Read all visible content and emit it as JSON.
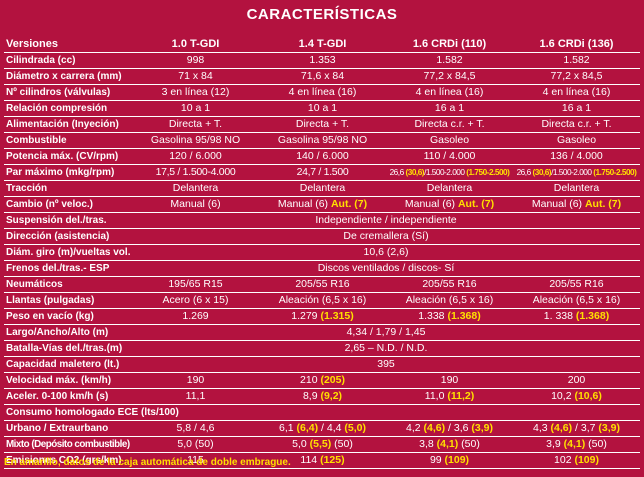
{
  "title": "CARACTERÍSTICAS",
  "columns": [
    "Versiones",
    "1.0 T-GDI",
    "1.4 T-GDI",
    "1.6 CRDi (110)",
    "1.6 CRDi (136)"
  ],
  "rows": [
    {
      "label": "Cilindrada (cc)",
      "cells": [
        [
          {
            "t": "998"
          }
        ],
        [
          {
            "t": "1.353"
          }
        ],
        [
          {
            "t": "1.582"
          }
        ],
        [
          {
            "t": "1.582"
          }
        ]
      ]
    },
    {
      "label": "Diámetro x carrera (mm)",
      "cells": [
        [
          {
            "t": "71 x 84"
          }
        ],
        [
          {
            "t": "71,6 x 84"
          }
        ],
        [
          {
            "t": "77,2 x 84,5"
          }
        ],
        [
          {
            "t": "77,2 x 84,5"
          }
        ]
      ]
    },
    {
      "label": "Nº cilindros (válvulas)",
      "cells": [
        [
          {
            "t": "3 en línea (12)"
          }
        ],
        [
          {
            "t": "4 en línea (16)"
          }
        ],
        [
          {
            "t": "4 en línea (16)"
          }
        ],
        [
          {
            "t": "4 en línea (16)"
          }
        ]
      ]
    },
    {
      "label": "Relación compresión",
      "cells": [
        [
          {
            "t": "10 a 1"
          }
        ],
        [
          {
            "t": "10 a 1"
          }
        ],
        [
          {
            "t": "16 a 1"
          }
        ],
        [
          {
            "t": "16 a 1"
          }
        ]
      ]
    },
    {
      "label": "Alimentación (Inyeción)",
      "cells": [
        [
          {
            "t": "Directa + T."
          }
        ],
        [
          {
            "t": "Directa + T."
          }
        ],
        [
          {
            "t": "Directa c.r. + T."
          }
        ],
        [
          {
            "t": "Directa c.r. + T."
          }
        ]
      ]
    },
    {
      "label": "Combustible",
      "cells": [
        [
          {
            "t": "Gasolina 95/98 NO"
          }
        ],
        [
          {
            "t": "Gasolina 95/98 NO"
          }
        ],
        [
          {
            "t": "Gasoleo"
          }
        ],
        [
          {
            "t": "Gasoleo"
          }
        ]
      ]
    },
    {
      "label": "Potencia máx. (CV/rpm)",
      "cells": [
        [
          {
            "t": "120 / 6.000"
          }
        ],
        [
          {
            "t": "140 / 6.000"
          }
        ],
        [
          {
            "t": "110 / 4.000"
          }
        ],
        [
          {
            "t": "136 / 4.000"
          }
        ]
      ]
    },
    {
      "label": "Par máximo (mkg/rpm)",
      "tight": true,
      "cells": [
        [
          {
            "t": "17,5 / 1.500-4.000"
          }
        ],
        [
          {
            "t": "24,7 / 1.500"
          }
        ],
        [
          {
            "t": "26,6 "
          },
          {
            "t": "(30,6)",
            "y": true
          },
          {
            "t": "/1.500-2.000 "
          },
          {
            "t": "(1.750-2.500)",
            "y": true
          }
        ],
        [
          {
            "t": "26,6 "
          },
          {
            "t": "(30,6)",
            "y": true
          },
          {
            "t": "/1.500-2.000 "
          },
          {
            "t": "(1.750-2.500)",
            "y": true
          }
        ]
      ]
    },
    {
      "label": "Tracción",
      "cells": [
        [
          {
            "t": "Delantera"
          }
        ],
        [
          {
            "t": "Delantera"
          }
        ],
        [
          {
            "t": "Delantera"
          }
        ],
        [
          {
            "t": "Delantera"
          }
        ]
      ]
    },
    {
      "label": "Cambio (nº veloc.)",
      "cells": [
        [
          {
            "t": "Manual (6)"
          }
        ],
        [
          {
            "t": "Manual (6) "
          },
          {
            "t": "Aut. (7)",
            "y": true
          }
        ],
        [
          {
            "t": "Manual (6) "
          },
          {
            "t": "Aut. (7)",
            "y": true
          }
        ],
        [
          {
            "t": "Manual (6) "
          },
          {
            "t": "Aut. (7)",
            "y": true
          }
        ]
      ]
    },
    {
      "label": "Suspensión del./tras.",
      "span": [
        {
          "t": "Independiente / independiente"
        }
      ]
    },
    {
      "label": "Dirección (asistencia)",
      "span": [
        {
          "t": "De cremallera (Sí)"
        }
      ]
    },
    {
      "label": "Diám. giro (m)/vueltas vol.",
      "span": [
        {
          "t": "10,6 (2,6)"
        }
      ]
    },
    {
      "label": "Frenos del./tras.- ESP",
      "span": [
        {
          "t": "Discos ventilados / discos- Sí"
        }
      ]
    },
    {
      "label": "Neumáticos",
      "cells": [
        [
          {
            "t": "195/65 R15"
          }
        ],
        [
          {
            "t": "205/55 R16"
          }
        ],
        [
          {
            "t": "205/55 R16"
          }
        ],
        [
          {
            "t": "205/55 R16"
          }
        ]
      ]
    },
    {
      "label": "Llantas (pulgadas)",
      "cells": [
        [
          {
            "t": "Acero (6 x 15)"
          }
        ],
        [
          {
            "t": "Aleación (6,5 x 16)"
          }
        ],
        [
          {
            "t": "Aleación (6,5 x 16)"
          }
        ],
        [
          {
            "t": "Aleación (6,5 x 16)"
          }
        ]
      ]
    },
    {
      "label": "Peso en vacío (kg)",
      "cells": [
        [
          {
            "t": "1.269"
          }
        ],
        [
          {
            "t": "1.279 "
          },
          {
            "t": "(1.315)",
            "y": true
          }
        ],
        [
          {
            "t": "1.338 "
          },
          {
            "t": "(1.368)",
            "y": true
          }
        ],
        [
          {
            "t": "1. 338 "
          },
          {
            "t": "(1.368)",
            "y": true
          }
        ]
      ]
    },
    {
      "label": "Largo/Ancho/Alto (m)",
      "span": [
        {
          "t": "4,34 / 1,79 / 1,45"
        }
      ]
    },
    {
      "label": "Batalla-Vías del./tras.(m)",
      "span": [
        {
          "t": "2,65 – N.D. / N.D."
        }
      ]
    },
    {
      "label": "Capacidad maletero (lt.)",
      "span": [
        {
          "t": "395"
        }
      ]
    },
    {
      "label": "Velocidad máx. (km/h)",
      "cells": [
        [
          {
            "t": "190"
          }
        ],
        [
          {
            "t": "210 "
          },
          {
            "t": "(205)",
            "y": true
          }
        ],
        [
          {
            "t": "190"
          }
        ],
        [
          {
            "t": "200"
          }
        ]
      ]
    },
    {
      "label": "Aceler. 0-100 km/h (s)",
      "cells": [
        [
          {
            "t": "11,1"
          }
        ],
        [
          {
            "t": "8,9 "
          },
          {
            "t": "(9,2)",
            "y": true
          }
        ],
        [
          {
            "t": "11,0 "
          },
          {
            "t": "(11,2)",
            "y": true
          }
        ],
        [
          {
            "t": "10,2 "
          },
          {
            "t": "(10,6)",
            "y": true
          }
        ]
      ]
    },
    {
      "label": "Consumo homologado ECE (lts/100)",
      "section": true,
      "cells": [
        [],
        [],
        [],
        []
      ]
    },
    {
      "label": "Urbano / Extraurbano",
      "cells": [
        [
          {
            "t": "5,8 / 4,6"
          }
        ],
        [
          {
            "t": "6,1 "
          },
          {
            "t": "(6,4)",
            "y": true
          },
          {
            "t": " / 4,4 "
          },
          {
            "t": "(5,0)",
            "y": true
          }
        ],
        [
          {
            "t": "4,2 "
          },
          {
            "t": "(4,6)",
            "y": true
          },
          {
            "t": " / 3,6 "
          },
          {
            "t": "(3,9)",
            "y": true
          }
        ],
        [
          {
            "t": "4,3 "
          },
          {
            "t": "(4,6)",
            "y": true
          },
          {
            "t": " / 3,7 "
          },
          {
            "t": "(3,9)",
            "y": true
          }
        ]
      ]
    },
    {
      "label": "Mixto (Depósito combustible)",
      "cells": [
        [
          {
            "t": "5,0 (50)"
          }
        ],
        [
          {
            "t": "5,0 "
          },
          {
            "t": "(5,5)",
            "y": true
          },
          {
            "t": " (50)"
          }
        ],
        [
          {
            "t": "3,8 "
          },
          {
            "t": "(4,1)",
            "y": true
          },
          {
            "t": " (50)"
          }
        ],
        [
          {
            "t": "3,9 "
          },
          {
            "t": "(4,1)",
            "y": true
          },
          {
            "t": " (50)"
          }
        ]
      ]
    },
    {
      "label": "Emisiones CO2 (grs/km)",
      "cells": [
        [
          {
            "t": "115"
          }
        ],
        [
          {
            "t": "114 "
          },
          {
            "t": "(125)",
            "y": true
          }
        ],
        [
          {
            "t": "99 "
          },
          {
            "t": "(109)",
            "y": true
          }
        ],
        [
          {
            "t": "102 "
          },
          {
            "t": "(109)",
            "y": true
          }
        ]
      ]
    }
  ],
  "footnote": "En amarillo, datos de la caja automática de doble embrague.",
  "colors": {
    "background": "#b3123f",
    "text": "#ffffff",
    "highlight": "#ffe000"
  }
}
